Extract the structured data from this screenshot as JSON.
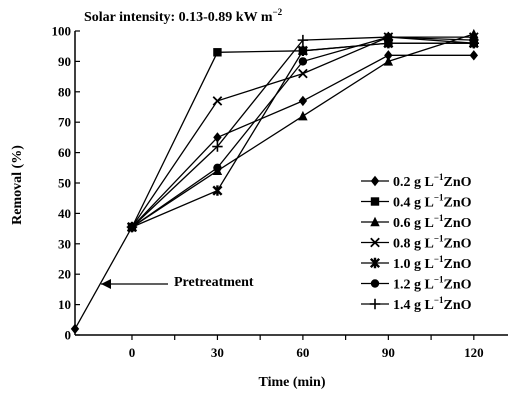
{
  "chart_data": {
    "type": "line",
    "title": "",
    "annotation_top": "Solar intensity: 0.13-0.89 kW m",
    "annotation_top_sup": "−2",
    "pretreatment_label": "Pretreatment",
    "xlabel": "Time (min)",
    "ylabel": "Removal (%)",
    "x_ticks": [
      0,
      30,
      60,
      90,
      120
    ],
    "y_ticks": [
      0,
      10,
      20,
      30,
      40,
      50,
      60,
      70,
      80,
      90,
      100
    ],
    "ylim": [
      0,
      100
    ],
    "x_start": -20,
    "start_value": 2,
    "x": [
      0,
      30,
      60,
      90,
      120
    ],
    "grid": false,
    "legend_position": "right",
    "series": [
      {
        "name": "0.2 g L",
        "sup": "−1",
        "unit": "ZnO",
        "marker": "diamond",
        "values": [
          35.5,
          65,
          77,
          92,
          92
        ]
      },
      {
        "name": "0.4 g L",
        "sup": "−1",
        "unit": "ZnO",
        "marker": "square",
        "values": [
          35.5,
          93,
          93.5,
          96,
          96
        ]
      },
      {
        "name": "0.6 g L",
        "sup": "−1",
        "unit": "ZnO",
        "marker": "triangle",
        "values": [
          35.5,
          54,
          72,
          90,
          99
        ]
      },
      {
        "name": "0.8 g L",
        "sup": "−1",
        "unit": "ZnO",
        "marker": "x",
        "values": [
          35.5,
          77,
          86,
          98,
          98
        ]
      },
      {
        "name": "1.0 g L",
        "sup": "−1",
        "unit": "ZnO",
        "marker": "asterisk",
        "values": [
          35.5,
          47.5,
          93.5,
          96,
          96
        ]
      },
      {
        "name": "1.2 g L",
        "sup": "−1",
        "unit": "ZnO",
        "marker": "circle",
        "values": [
          35.5,
          55,
          90,
          98,
          97
        ]
      },
      {
        "name": "1.4 g L",
        "sup": "−1",
        "unit": "ZnO",
        "marker": "plus",
        "values": [
          35.5,
          62,
          97,
          98,
          96
        ]
      }
    ]
  }
}
